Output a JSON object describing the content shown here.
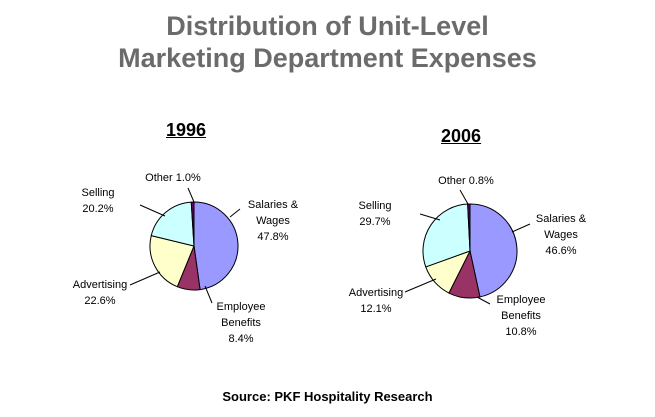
{
  "title_line1": "Distribution of Unit-Level",
  "title_line2": "Marketing Department Expenses",
  "source": "Source: PKF Hospitality Research",
  "chart_data": [
    {
      "type": "pie",
      "title": "1996",
      "slices": [
        {
          "label": "Salaries & Wages",
          "value": 47.8,
          "display": "47.8%",
          "color": "#9999ff"
        },
        {
          "label": "Employee Benefits",
          "value": 8.4,
          "display": "8.4%",
          "color": "#993366"
        },
        {
          "label": "Advertising",
          "value": 22.6,
          "display": "22.6%",
          "color": "#ffffcc"
        },
        {
          "label": "Selling",
          "value": 20.2,
          "display": "20.2%",
          "color": "#ccffff"
        },
        {
          "label": "Other",
          "value": 1.0,
          "display": "1.0%",
          "color": "#660066"
        }
      ]
    },
    {
      "type": "pie",
      "title": "2006",
      "slices": [
        {
          "label": "Salaries & Wages",
          "value": 46.6,
          "display": "46.6%",
          "color": "#9999ff"
        },
        {
          "label": "Employee Benefits",
          "value": 10.8,
          "display": "10.8%",
          "color": "#993366"
        },
        {
          "label": "Advertising",
          "value": 12.1,
          "display": "12.1%",
          "color": "#ffffcc"
        },
        {
          "label": "Selling",
          "value": 29.7,
          "display": "29.7%",
          "color": "#ccffff"
        },
        {
          "label": "Other",
          "value": 0.8,
          "display": "0.8%",
          "color": "#660066"
        }
      ]
    }
  ]
}
